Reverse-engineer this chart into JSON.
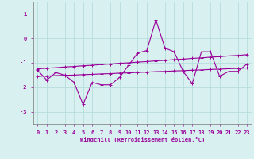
{
  "x": [
    0,
    1,
    2,
    3,
    4,
    5,
    6,
    7,
    8,
    9,
    10,
    11,
    12,
    13,
    14,
    15,
    16,
    17,
    18,
    19,
    20,
    21,
    22,
    23
  ],
  "y_main": [
    -1.3,
    -1.7,
    -1.4,
    -1.5,
    -1.8,
    -2.7,
    -1.8,
    -1.9,
    -1.9,
    -1.6,
    -1.1,
    -0.6,
    -0.5,
    0.75,
    -0.4,
    -0.55,
    -1.35,
    -1.85,
    -0.55,
    -0.55,
    -1.55,
    -1.35,
    -1.35,
    -1.05
  ],
  "y_upper": [
    -1.25,
    -1.22,
    -1.2,
    -1.17,
    -1.15,
    -1.12,
    -1.1,
    -1.07,
    -1.05,
    -1.02,
    -1.0,
    -0.97,
    -0.95,
    -0.92,
    -0.9,
    -0.87,
    -0.85,
    -0.82,
    -0.8,
    -0.77,
    -0.75,
    -0.72,
    -0.7,
    -0.67
  ],
  "y_lower": [
    -1.55,
    -1.54,
    -1.52,
    -1.51,
    -1.5,
    -1.48,
    -1.47,
    -1.45,
    -1.44,
    -1.42,
    -1.41,
    -1.39,
    -1.38,
    -1.36,
    -1.35,
    -1.33,
    -1.32,
    -1.3,
    -1.29,
    -1.27,
    -1.26,
    -1.24,
    -1.23,
    -1.21
  ],
  "line_color": "#990099",
  "bg_color": "#d8f0f0",
  "grid_color": "#b0dada",
  "xlabel": "Windchill (Refroidissement éolien,°C)",
  "xlim": [
    -0.5,
    23.5
  ],
  "ylim": [
    -3.5,
    1.5
  ],
  "yticks": [
    1,
    0,
    -1,
    -2,
    -3
  ],
  "xticks": [
    0,
    1,
    2,
    3,
    4,
    5,
    6,
    7,
    8,
    9,
    10,
    11,
    12,
    13,
    14,
    15,
    16,
    17,
    18,
    19,
    20,
    21,
    22,
    23
  ]
}
